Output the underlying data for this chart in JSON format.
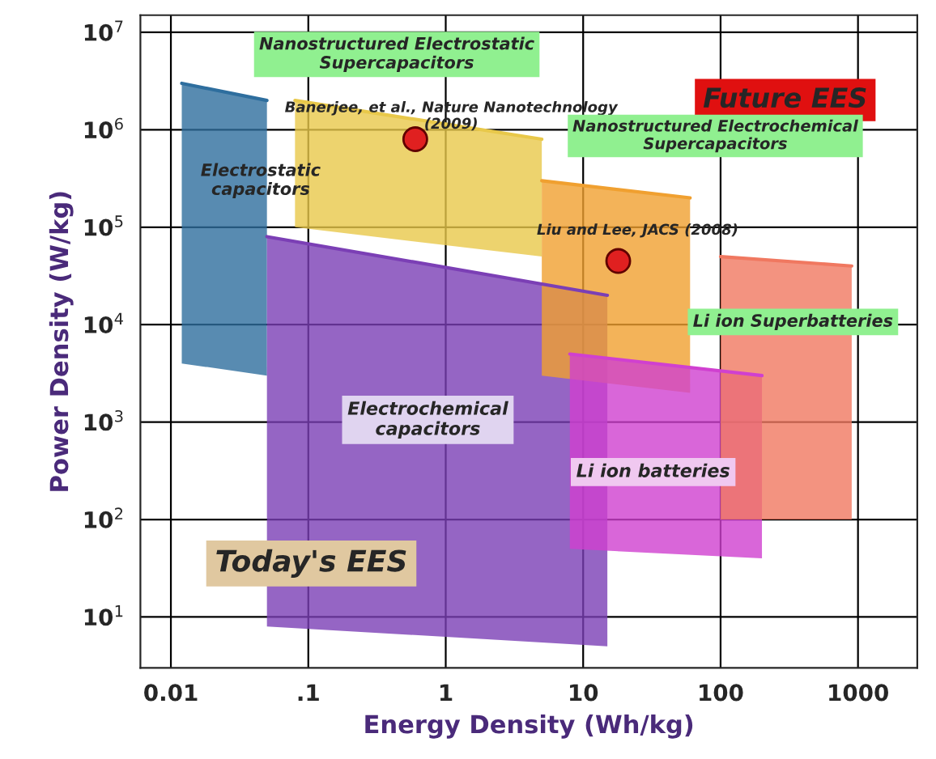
{
  "chart_data": {
    "type": "line",
    "xlabel": "Energy Density (Wh/kg)",
    "ylabel": "Power Density (W/kg)",
    "log": "xy",
    "grid": true,
    "xlim": [
      0.006,
      2700
    ],
    "ylim": [
      3,
      15000000
    ],
    "xticks": [
      0.01,
      {
        "value": 0.1,
        "label": ".1"
      },
      1,
      10,
      100,
      1000
    ],
    "yticks": [
      {
        "value": 10,
        "label": "10$^{1}$"
      },
      {
        "value": 100,
        "label": "10$^{2}$"
      },
      {
        "value": 1000,
        "label": "10$^{3}$"
      },
      {
        "value": 10000,
        "label": "10$^{4}$"
      },
      {
        "value": 100000,
        "label": "10$^{5}$"
      },
      {
        "value": 1000000,
        "label": "10$^{6}$"
      },
      {
        "value": 10000000,
        "label": "10$^{7}$"
      }
    ],
    "series": [
      {
        "color": "#2e6e9e",
        "x": [
          0.012,
          0.05
        ],
        "values": [
          3000000,
          2000000
        ],
        "lower": [
          4000,
          3000
        ],
        "upper": [
          3000000,
          2000000
        ]
      },
      {
        "color": "#7b3fb5",
        "x": [
          0.05,
          15
        ],
        "values": [
          80000,
          20000
        ],
        "lower": [
          8,
          5
        ],
        "upper": [
          80000,
          20000
        ]
      },
      {
        "color": "#e8c84a",
        "x": [
          0.08,
          5
        ],
        "values": [
          2000000,
          800000
        ],
        "lower": [
          100000,
          50000
        ],
        "upper": [
          2000000,
          800000
        ]
      },
      {
        "color": "#f0a030",
        "x": [
          5,
          60
        ],
        "values": [
          300000,
          200000
        ],
        "lower": [
          3000,
          2000
        ],
        "upper": [
          300000,
          200000
        ]
      },
      {
        "color": "#d040d0",
        "x": [
          8,
          200
        ],
        "values": [
          5000,
          3000
        ],
        "lower": [
          50,
          40
        ],
        "upper": [
          5000,
          3000
        ]
      },
      {
        "color": "#f07860",
        "x": [
          100,
          900
        ],
        "values": [
          50000,
          40000
        ],
        "lower": [
          100,
          100
        ],
        "upper": [
          50000,
          40000
        ]
      },
      {
        "type": "scatter",
        "marker": "circle",
        "color": "#e02020",
        "x": [
          0.6,
          18
        ],
        "values": [
          800000,
          45000
        ]
      }
    ],
    "annotations": [
      "Nanostructured Electrostatic\nSupercapacitors",
      "Banerjee, et al., Nature Nanotechnology\n(2009)",
      "Future EES",
      {
        "text": "Electrostatic\ncapacitors",
        "x": 0.045,
        "y": 300000
      },
      "Nanostructured Electrochemical\nSupercapacitors",
      "Liu and Lee, JACS (2008)",
      "Li ion Superbatteries",
      "Electrochemical\ncapacitors",
      "Today's EES",
      "Li ion batteries"
    ]
  }
}
